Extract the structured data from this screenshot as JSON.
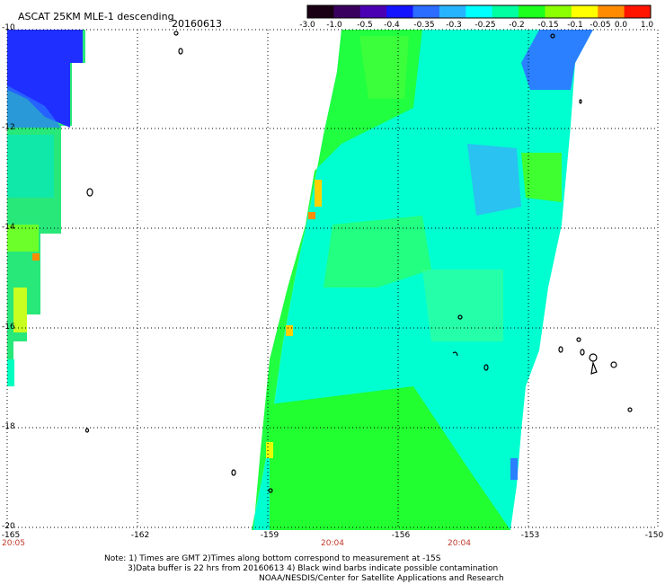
{
  "title": "ASCAT 25KM MLE-1 descending",
  "date": "20160613",
  "colorbar": {
    "ticks": [
      "-3.0",
      "-1.0",
      "-0.5",
      "-0.4",
      "-0.35",
      "-0.3",
      "-0.25",
      "-0.2",
      "-0.15",
      "-0.1",
      "-0.05",
      "0.0",
      "1.0"
    ],
    "colors": [
      "#1a0014",
      "#3a0060",
      "#4b00b4",
      "#1414ff",
      "#2c6cff",
      "#27b4ff",
      "#00ffff",
      "#00ffa0",
      "#1eff1e",
      "#8cff00",
      "#ffff00",
      "#ff8c00",
      "#ff1400"
    ]
  },
  "lat_labels": [
    "-10",
    "-12",
    "-14",
    "-16",
    "-18",
    "-20"
  ],
  "lon_labels": [
    "-165",
    "-162",
    "-159",
    "-156",
    "-153",
    "-150"
  ],
  "time_labels": [
    "20:05",
    "20:04",
    "20:04"
  ],
  "notes": [
    "Note: 1) Times are GMT 2)Times along bottom correspond to measurement at -15S",
    "3)Data buffer is 22 hrs from 20160613 4) Black wind barbs indicate possible contamination",
    "NOAA/NESDIS/Center for Satellite Applications and Research"
  ],
  "palette": {
    "blue": "#1e3cff",
    "cyan": "#00ffff",
    "green": "#18ff60",
    "yellow": "#ffff00",
    "red_time": "#c0392b"
  }
}
